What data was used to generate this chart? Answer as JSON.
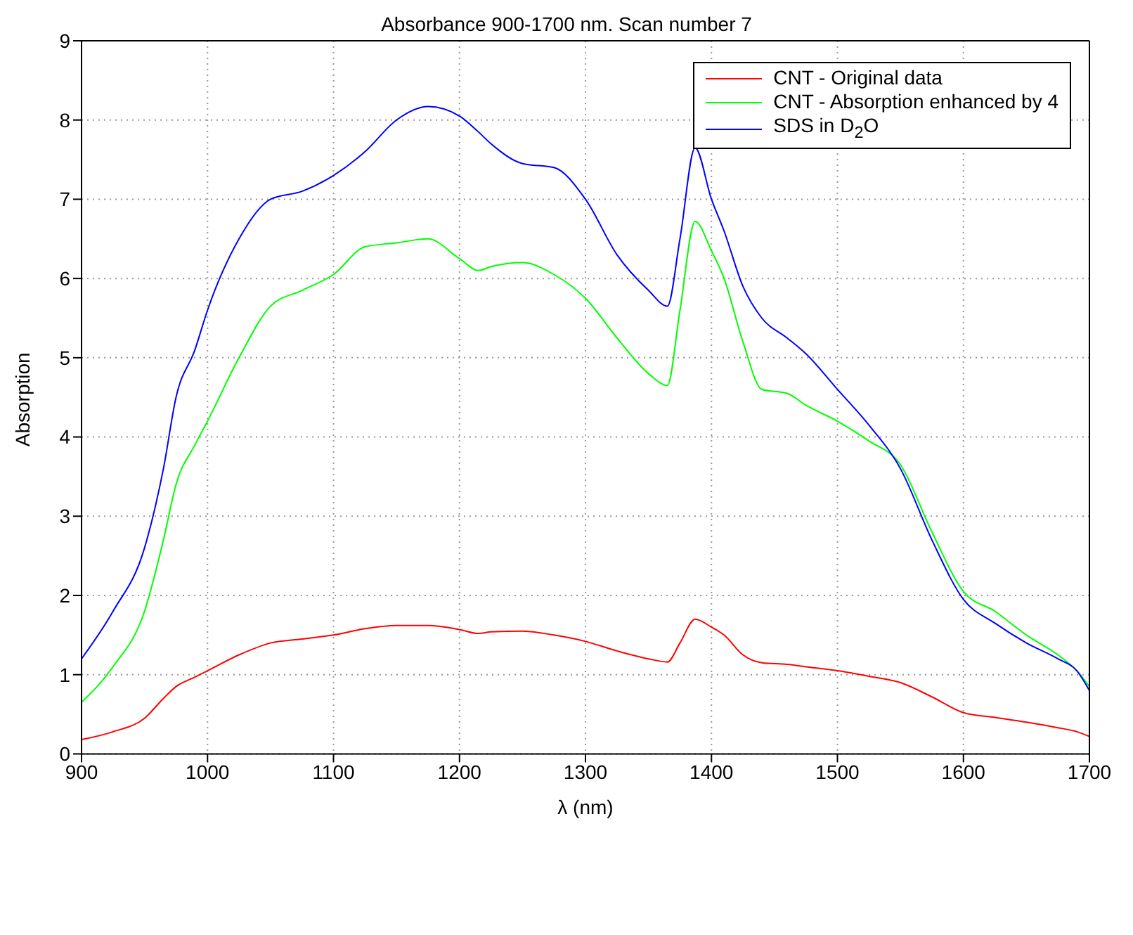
{
  "chart_data": {
    "type": "line",
    "title": "Absorbance 900-1700 nm. Scan number 7",
    "xlabel": "λ (nm)",
    "ylabel": "Absorption",
    "x": [
      900,
      925,
      950,
      965,
      975,
      990,
      1000,
      1025,
      1050,
      1075,
      1100,
      1125,
      1150,
      1175,
      1200,
      1215,
      1225,
      1250,
      1275,
      1300,
      1325,
      1350,
      1365,
      1375,
      1387,
      1400,
      1410,
      1425,
      1440,
      1460,
      1475,
      1500,
      1525,
      1550,
      1575,
      1600,
      1625,
      1650,
      1675,
      1690,
      1700
    ],
    "series": [
      {
        "name": "CNT - Original data",
        "color": "#ff0000",
        "values": [
          0.18,
          0.28,
          0.45,
          0.7,
          0.85,
          0.97,
          1.05,
          1.25,
          1.4,
          1.45,
          1.5,
          1.58,
          1.62,
          1.62,
          1.57,
          1.52,
          1.54,
          1.55,
          1.5,
          1.42,
          1.3,
          1.2,
          1.16,
          1.4,
          1.7,
          1.6,
          1.5,
          1.25,
          1.15,
          1.13,
          1.1,
          1.05,
          0.98,
          0.9,
          0.72,
          0.52,
          0.46,
          0.4,
          0.33,
          0.28,
          0.22
        ]
      },
      {
        "name": "CNT - Absorption enhanced by 4",
        "color": "#00ff00",
        "values": [
          0.65,
          1.1,
          1.8,
          2.7,
          3.4,
          3.9,
          4.2,
          5.0,
          5.65,
          5.85,
          6.05,
          6.4,
          6.45,
          6.5,
          6.25,
          6.1,
          6.15,
          6.2,
          6.05,
          5.75,
          5.25,
          4.8,
          4.65,
          5.6,
          6.72,
          6.35,
          6.0,
          5.2,
          4.6,
          4.55,
          4.4,
          4.2,
          3.95,
          3.65,
          2.8,
          2.05,
          1.8,
          1.5,
          1.25,
          1.05,
          0.85
        ]
      },
      {
        "name": "SDS in D$_{2}$O",
        "color": "#0000ff",
        "values": [
          1.2,
          1.8,
          2.6,
          3.6,
          4.5,
          5.1,
          5.6,
          6.5,
          7.0,
          7.1,
          7.3,
          7.6,
          8.0,
          8.17,
          8.05,
          7.85,
          7.7,
          7.45,
          7.4,
          7.0,
          6.3,
          5.85,
          5.65,
          6.5,
          7.65,
          7.0,
          6.6,
          5.9,
          5.5,
          5.25,
          5.05,
          4.6,
          4.15,
          3.6,
          2.7,
          1.95,
          1.65,
          1.4,
          1.2,
          1.05,
          0.8
        ]
      }
    ],
    "xlim": [
      900,
      1700
    ],
    "xticks": [
      900,
      1000,
      1100,
      1200,
      1300,
      1400,
      1500,
      1600,
      1700
    ],
    "ylim": [
      0,
      9
    ],
    "yticks": [
      0,
      1,
      2,
      3,
      4,
      5,
      6,
      7,
      8,
      9
    ],
    "grid": true,
    "legend": "top right",
    "marker": "none",
    "line_style": "solid"
  }
}
